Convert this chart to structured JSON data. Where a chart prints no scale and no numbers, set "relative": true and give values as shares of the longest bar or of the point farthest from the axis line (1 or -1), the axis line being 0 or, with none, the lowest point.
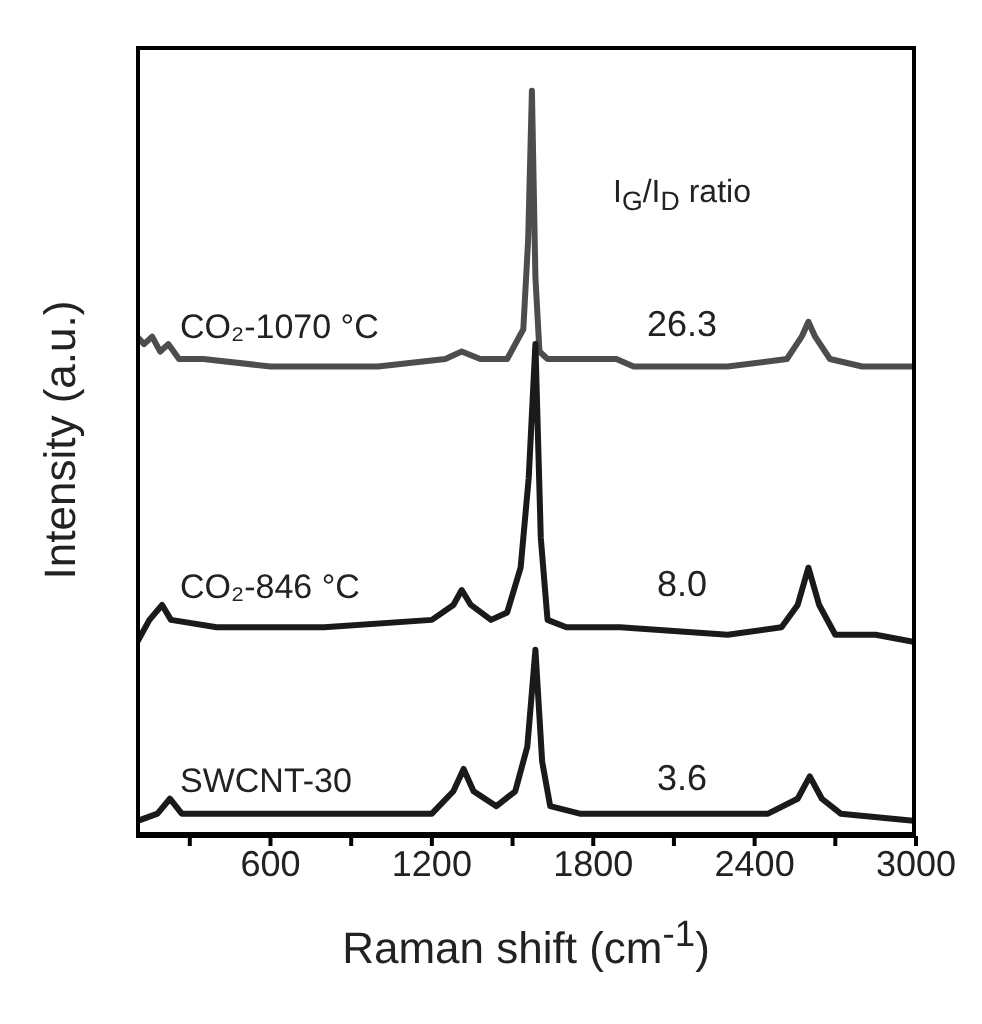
{
  "chart_data": {
    "type": "line",
    "relative": true,
    "xlabel": "Raman shift (cm$^{-1}$)",
    "ylabel": "Intensity (a.u.)",
    "xlim": [
      100,
      3000
    ],
    "xticks": [
      {
        "value": 300,
        "label": null
      },
      600,
      {
        "value": 900,
        "label": null
      },
      1200,
      {
        "value": 1500,
        "label": null
      },
      1800,
      {
        "value": 2100,
        "label": null
      },
      2400,
      {
        "value": 2700,
        "label": null
      },
      3000
    ],
    "annotations": [
      "I$_{G}$/I$_{D}$ ratio",
      "26.3",
      "8.0",
      "3.6"
    ],
    "grid": false,
    "legend": false,
    "marker": "none",
    "line_style": "solid",
    "series": [
      {
        "name": "CO₂-1070 °C",
        "color": "#4d4d4d",
        "x": [
          104,
          130,
          160,
          190,
          220,
          260,
          350,
          600,
          1000,
          1250,
          1311,
          1380,
          1480,
          1540,
          1558,
          1572,
          1585,
          1600,
          1630,
          1700,
          1886,
          1950,
          2300,
          2520,
          2575,
          2600,
          2625,
          2680,
          2800,
          3000
        ],
        "values": [
          0.67,
          0.66,
          0.67,
          0.65,
          0.66,
          0.64,
          0.64,
          0.63,
          0.63,
          0.64,
          0.65,
          0.64,
          0.64,
          0.68,
          0.8,
          1.0,
          0.75,
          0.65,
          0.64,
          0.64,
          0.64,
          0.63,
          0.63,
          0.64,
          0.67,
          0.69,
          0.67,
          0.64,
          0.63,
          0.63
        ]
      },
      {
        "name": "CO₂-846 °C",
        "color": "#1a1a1a",
        "x": [
          104,
          150,
          197,
          230,
          400,
          800,
          1200,
          1280,
          1311,
          1345,
          1420,
          1480,
          1530,
          1560,
          1585,
          1605,
          1630,
          1700,
          1900,
          2300,
          2500,
          2560,
          2600,
          2640,
          2700,
          2850,
          3000
        ],
        "values": [
          0.26,
          0.29,
          0.31,
          0.29,
          0.28,
          0.28,
          0.29,
          0.31,
          0.33,
          0.31,
          0.29,
          0.3,
          0.36,
          0.48,
          0.66,
          0.4,
          0.29,
          0.28,
          0.28,
          0.27,
          0.28,
          0.31,
          0.36,
          0.31,
          0.27,
          0.27,
          0.26
        ]
      },
      {
        "name": "SWCNT-30",
        "color": "#1a1a1a",
        "x": [
          104,
          180,
          226,
          270,
          500,
          900,
          1200,
          1280,
          1318,
          1355,
          1440,
          1510,
          1555,
          1585,
          1610,
          1640,
          1750,
          2100,
          2450,
          2560,
          2605,
          2650,
          2720,
          3000
        ],
        "values": [
          0.02,
          0.03,
          0.05,
          0.03,
          0.03,
          0.03,
          0.03,
          0.06,
          0.09,
          0.06,
          0.04,
          0.06,
          0.12,
          0.25,
          0.1,
          0.04,
          0.03,
          0.03,
          0.03,
          0.05,
          0.08,
          0.05,
          0.03,
          0.02
        ]
      }
    ]
  }
}
